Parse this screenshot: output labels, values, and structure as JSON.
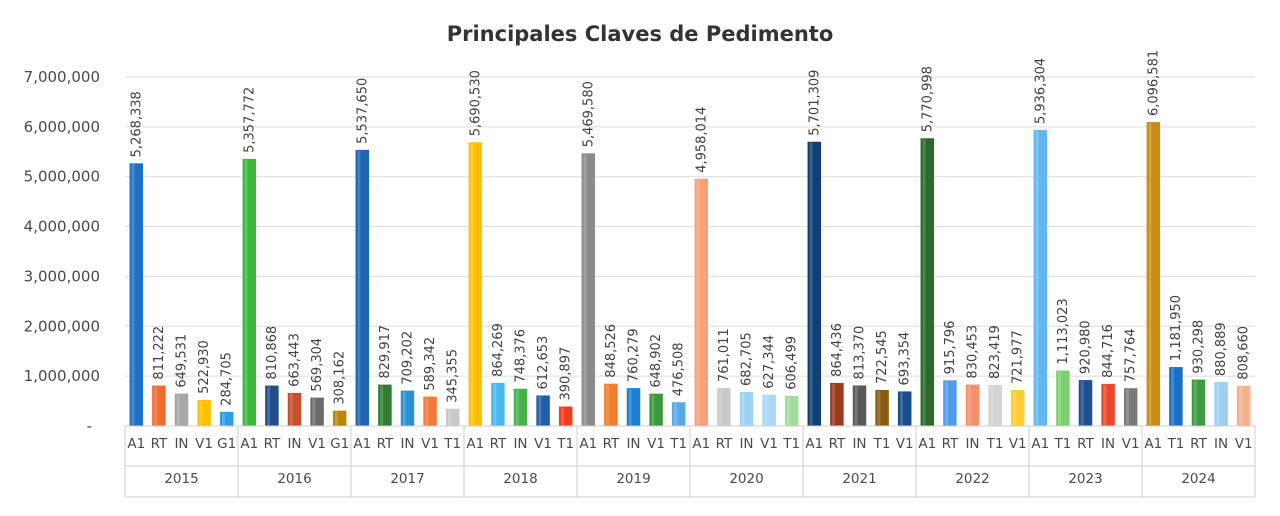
{
  "chart_data": {
    "type": "bar",
    "title": "Principales Claves de Pedimento",
    "xlabel": "",
    "ylabel": "",
    "ylim": [
      0,
      7000000
    ],
    "y_ticks": [
      "-",
      "1,000,000",
      "2,000,000",
      "3,000,000",
      "4,000,000",
      "5,000,000",
      "6,000,000",
      "7,000,000"
    ],
    "grid": true,
    "legend": "none",
    "groups": [
      {
        "year": "2015",
        "bars": [
          {
            "code": "A1",
            "value": 5268338,
            "label": "5,268,338",
            "color": "#1f6fc5"
          },
          {
            "code": "RT",
            "value": 811222,
            "label": "811,222",
            "color": "#f26b2d"
          },
          {
            "code": "IN",
            "value": 649531,
            "label": "649,531",
            "color": "#a6a6a6"
          },
          {
            "code": "V1",
            "value": 522930,
            "label": "522,930",
            "color": "#ffc000"
          },
          {
            "code": "G1",
            "value": 284705,
            "label": "284,705",
            "color": "#2e9be8"
          }
        ]
      },
      {
        "year": "2016",
        "bars": [
          {
            "code": "A1",
            "value": 5357772,
            "label": "5,357,772",
            "color": "#3cb83c"
          },
          {
            "code": "RT",
            "value": 810868,
            "label": "810,868",
            "color": "#1f4e8c"
          },
          {
            "code": "IN",
            "value": 663443,
            "label": "663,443",
            "color": "#c5502b"
          },
          {
            "code": "V1",
            "value": 569304,
            "label": "569,304",
            "color": "#6b6b6b"
          },
          {
            "code": "G1",
            "value": 308162,
            "label": "308,162",
            "color": "#b8860b"
          }
        ]
      },
      {
        "year": "2017",
        "bars": [
          {
            "code": "A1",
            "value": 5537650,
            "label": "5,537,650",
            "color": "#1e64b4"
          },
          {
            "code": "RT",
            "value": 829917,
            "label": "829,917",
            "color": "#2e7d32"
          },
          {
            "code": "IN",
            "value": 709202,
            "label": "709,202",
            "color": "#2b8fd6"
          },
          {
            "code": "V1",
            "value": 589342,
            "label": "589,342",
            "color": "#f47a3c"
          },
          {
            "code": "T1",
            "value": 345355,
            "label": "345,355",
            "color": "#c8c8c8"
          }
        ]
      },
      {
        "year": "2018",
        "bars": [
          {
            "code": "A1",
            "value": 5690530,
            "label": "5,690,530",
            "color": "#ffc000"
          },
          {
            "code": "RT",
            "value": 864269,
            "label": "864,269",
            "color": "#4db8f0"
          },
          {
            "code": "IN",
            "value": 748376,
            "label": "748,376",
            "color": "#48b04c"
          },
          {
            "code": "V1",
            "value": 612653,
            "label": "612,653",
            "color": "#1e5fa8"
          },
          {
            "code": "T1",
            "value": 390897,
            "label": "390,897",
            "color": "#f23c1e"
          }
        ]
      },
      {
        "year": "2019",
        "bars": [
          {
            "code": "A1",
            "value": 5469580,
            "label": "5,469,580",
            "color": "#8c8c8c"
          },
          {
            "code": "RT",
            "value": 848526,
            "label": "848,526",
            "color": "#f57c28"
          },
          {
            "code": "IN",
            "value": 760279,
            "label": "760,279",
            "color": "#1c7fd1"
          },
          {
            "code": "V1",
            "value": 648902,
            "label": "648,902",
            "color": "#3a9a3a"
          },
          {
            "code": "T1",
            "value": 476508,
            "label": "476,508",
            "color": "#58a9e8"
          }
        ]
      },
      {
        "year": "2020",
        "bars": [
          {
            "code": "A1",
            "value": 4958014,
            "label": "4,958,014",
            "color": "#f7a07a"
          },
          {
            "code": "RT",
            "value": 761011,
            "label": "761,011",
            "color": "#c9c9c9"
          },
          {
            "code": "IN",
            "value": 682705,
            "label": "682,705",
            "color": "#9dd3f5"
          },
          {
            "code": "V1",
            "value": 627344,
            "label": "627,344",
            "color": "#a8d8f8"
          },
          {
            "code": "T1",
            "value": 606499,
            "label": "606,499",
            "color": "#a5dba0"
          }
        ]
      },
      {
        "year": "2021",
        "bars": [
          {
            "code": "A1",
            "value": 5701309,
            "label": "5,701,309",
            "color": "#123f73"
          },
          {
            "code": "RT",
            "value": 864436,
            "label": "864,436",
            "color": "#9c3a1e"
          },
          {
            "code": "IN",
            "value": 813370,
            "label": "813,370",
            "color": "#5a5a5a"
          },
          {
            "code": "T1",
            "value": 722545,
            "label": "722,545",
            "color": "#8a5c10"
          },
          {
            "code": "V1",
            "value": 693354,
            "label": "693,354",
            "color": "#184e8c"
          }
        ]
      },
      {
        "year": "2022",
        "bars": [
          {
            "code": "A1",
            "value": 5770998,
            "label": "5,770,998",
            "color": "#2a6a2a"
          },
          {
            "code": "RT",
            "value": 915796,
            "label": "915,796",
            "color": "#4f9be8"
          },
          {
            "code": "IN",
            "value": 830453,
            "label": "830,453",
            "color": "#f7906a"
          },
          {
            "code": "T1",
            "value": 823419,
            "label": "823,419",
            "color": "#d4d4d4"
          },
          {
            "code": "V1",
            "value": 721977,
            "label": "721,977",
            "color": "#ffcc33"
          }
        ]
      },
      {
        "year": "2023",
        "bars": [
          {
            "code": "A1",
            "value": 5936304,
            "label": "5,936,304",
            "color": "#62b8ec"
          },
          {
            "code": "T1",
            "value": 1113023,
            "label": "1,113,023",
            "color": "#7ccf6e"
          },
          {
            "code": "RT",
            "value": 920980,
            "label": "920,980",
            "color": "#1f4f8f"
          },
          {
            "code": "IN",
            "value": 844716,
            "label": "844,716",
            "color": "#e8492a"
          },
          {
            "code": "V1",
            "value": 757764,
            "label": "757,764",
            "color": "#7a7a7a"
          }
        ]
      },
      {
        "year": "2024",
        "bars": [
          {
            "code": "A1",
            "value": 6096581,
            "label": "6,096,581",
            "color": "#c98c14"
          },
          {
            "code": "T1",
            "value": 1181950,
            "label": "1,181,950",
            "color": "#1d6fc4"
          },
          {
            "code": "RT",
            "value": 930298,
            "label": "930,298",
            "color": "#3e9a3e"
          },
          {
            "code": "IN",
            "value": 880889,
            "label": "880,889",
            "color": "#9ccff2"
          },
          {
            "code": "V1",
            "value": 808660,
            "label": "808,660",
            "color": "#f6b08c"
          }
        ]
      }
    ]
  }
}
